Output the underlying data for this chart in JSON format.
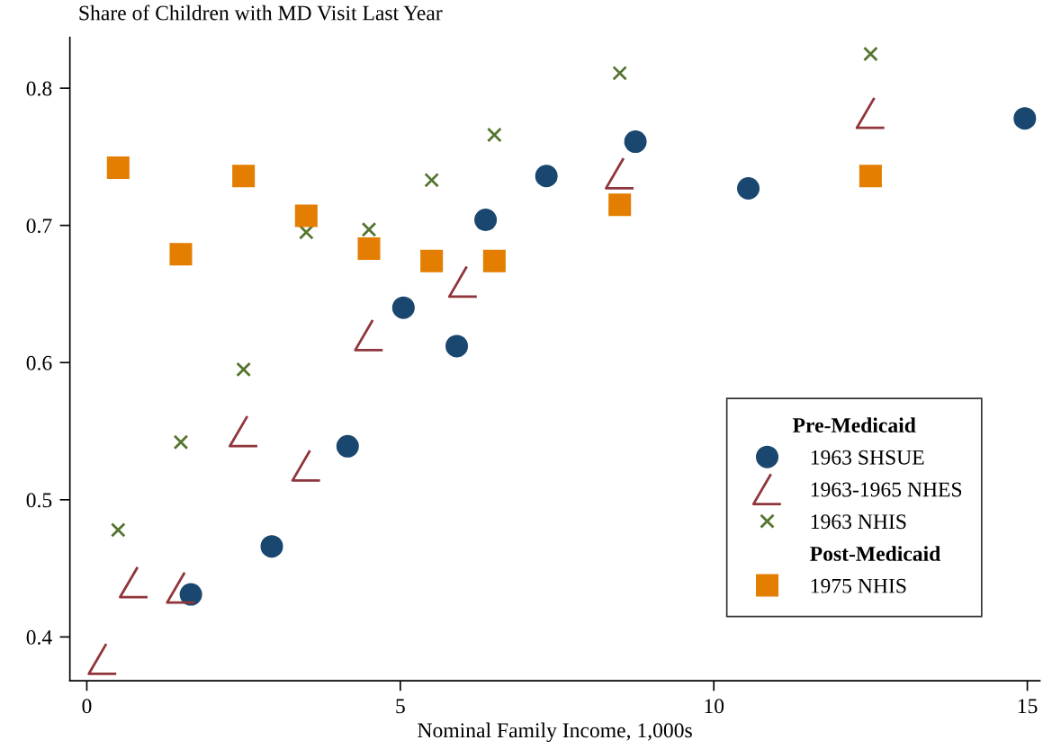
{
  "chart_data": {
    "type": "scatter",
    "title": "Share of Children with MD Visit Last Year",
    "xlabel": "Nominal Family Income, 1,000s",
    "legend_title": "Pre-Medicaid",
    "annotations": [
      "Post-Medicaid"
    ],
    "legend": "bottom right",
    "grid": false,
    "xlim": [
      -0.27,
      15.2
    ],
    "xticks": [
      0,
      5,
      10,
      15
    ],
    "ylim": [
      0.368,
      0.837
    ],
    "yticks": [
      0.4,
      0.5,
      0.6,
      0.7,
      0.8
    ],
    "series": [
      {
        "name": "1963 SHSUE",
        "color": "#1a476f",
        "marker": "circle",
        "x": [
          1.66,
          2.95,
          4.16,
          5.05,
          5.9,
          6.36,
          7.33,
          8.75,
          10.55,
          14.96
        ],
        "values": [
          0.431,
          0.466,
          0.539,
          0.64,
          0.612,
          0.704,
          0.736,
          0.761,
          0.727,
          0.778
        ]
      },
      {
        "name": "1963-1965 NHES",
        "color": "#90353b",
        "x": [
          0.25,
          0.75,
          1.5,
          2.5,
          3.5,
          4.5,
          6.0,
          8.5,
          12.5
        ],
        "values": [
          0.384,
          0.44,
          0.436,
          0.55,
          0.525,
          0.62,
          0.659,
          0.738,
          0.782
        ]
      },
      {
        "name": "1963 NHIS",
        "color": "#55752f",
        "marker": "cross",
        "x": [
          0.5,
          1.5,
          2.5,
          3.5,
          4.5,
          5.5,
          6.5,
          8.5,
          12.5
        ],
        "values": [
          0.478,
          0.542,
          0.595,
          0.695,
          0.697,
          0.733,
          0.766,
          0.811,
          0.825
        ]
      },
      {
        "name": "1975 NHIS",
        "color": "#e37e00",
        "marker": "square",
        "x": [
          0.5,
          1.5,
          2.5,
          3.5,
          4.5,
          5.5,
          6.5,
          8.5,
          12.5
        ],
        "values": [
          0.742,
          0.679,
          0.736,
          0.707,
          0.683,
          0.674,
          0.674,
          0.715,
          0.736
        ]
      }
    ]
  }
}
